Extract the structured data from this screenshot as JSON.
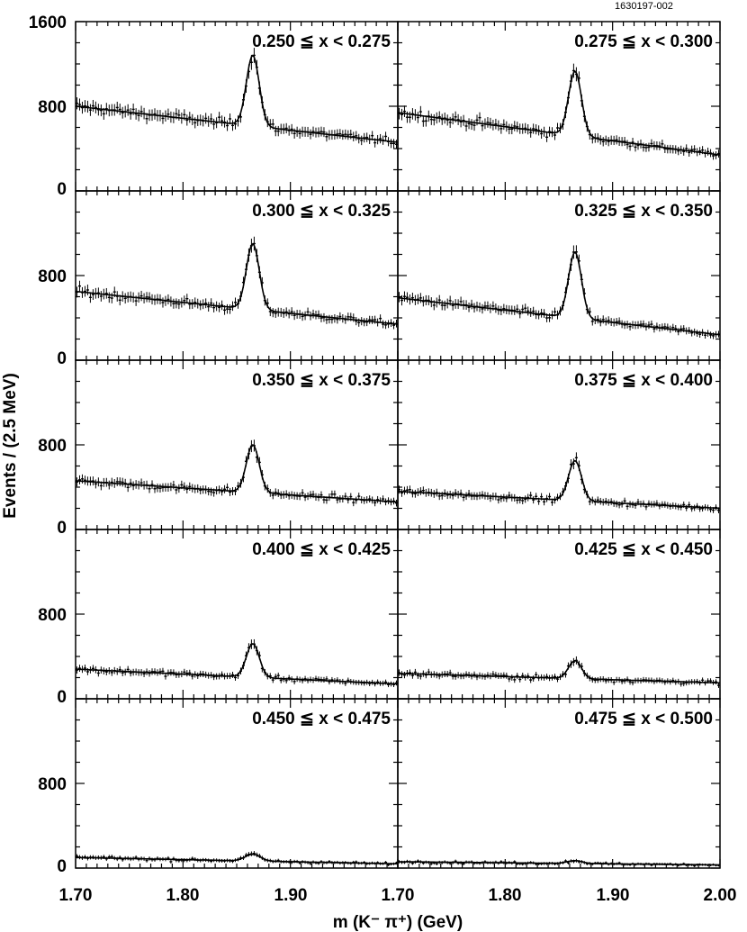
{
  "figure_id": "1630197-002",
  "chart_data": {
    "type": "scatter",
    "layout": "5x2 panel grid with shared axes",
    "xlabel": "m (K⁻ π⁺) (GeV)",
    "ylabel": "Events / (2.5 MeV)",
    "xlim": [
      1.7,
      2.0
    ],
    "ylim": [
      0,
      1600
    ],
    "x_tick_labels": [
      "1.70",
      "1.80",
      "1.90",
      "1.70",
      "1.80",
      "1.90",
      "2.00"
    ],
    "y_tick_labels": [
      "1600",
      "800",
      "0"
    ],
    "grid": false,
    "legend": "none",
    "peak_mass": 1.865,
    "panels": [
      {
        "label": "0.250 ≦ x < 0.275",
        "row": 0,
        "col": 0,
        "peak_height": 1280,
        "bg_start": 800,
        "bg_end": 460,
        "peak_width": 0.006
      },
      {
        "label": "0.275 ≦ x < 0.300",
        "row": 0,
        "col": 1,
        "peak_height": 1130,
        "bg_start": 740,
        "bg_end": 340,
        "peak_width": 0.006
      },
      {
        "label": "0.300 ≦ x < 0.325",
        "row": 1,
        "col": 0,
        "peak_height": 1100,
        "bg_start": 650,
        "bg_end": 340,
        "peak_width": 0.006
      },
      {
        "label": "0.325 ≦ x < 0.350",
        "row": 1,
        "col": 1,
        "peak_height": 1020,
        "bg_start": 590,
        "bg_end": 240,
        "peak_width": 0.006
      },
      {
        "label": "0.350 ≦ x < 0.375",
        "row": 2,
        "col": 0,
        "peak_height": 800,
        "bg_start": 460,
        "bg_end": 260,
        "peak_width": 0.006
      },
      {
        "label": "0.375 ≦ x < 0.400",
        "row": 2,
        "col": 1,
        "peak_height": 650,
        "bg_start": 360,
        "bg_end": 200,
        "peak_width": 0.006
      },
      {
        "label": "0.400 ≦ x < 0.425",
        "row": 3,
        "col": 0,
        "peak_height": 520,
        "bg_start": 280,
        "bg_end": 140,
        "peak_width": 0.006
      },
      {
        "label": "0.425 ≦ x < 0.450",
        "row": 3,
        "col": 1,
        "peak_height": 360,
        "bg_start": 240,
        "bg_end": 150,
        "peak_width": 0.006
      },
      {
        "label": "0.450 ≦ x < 0.475",
        "row": 4,
        "col": 0,
        "peak_height": 130,
        "bg_start": 100,
        "bg_end": 40,
        "peak_width": 0.007
      },
      {
        "label": "0.475 ≦ x < 0.500",
        "row": 4,
        "col": 1,
        "peak_height": 70,
        "bg_start": 60,
        "bg_end": 30,
        "peak_width": 0.007
      }
    ]
  }
}
